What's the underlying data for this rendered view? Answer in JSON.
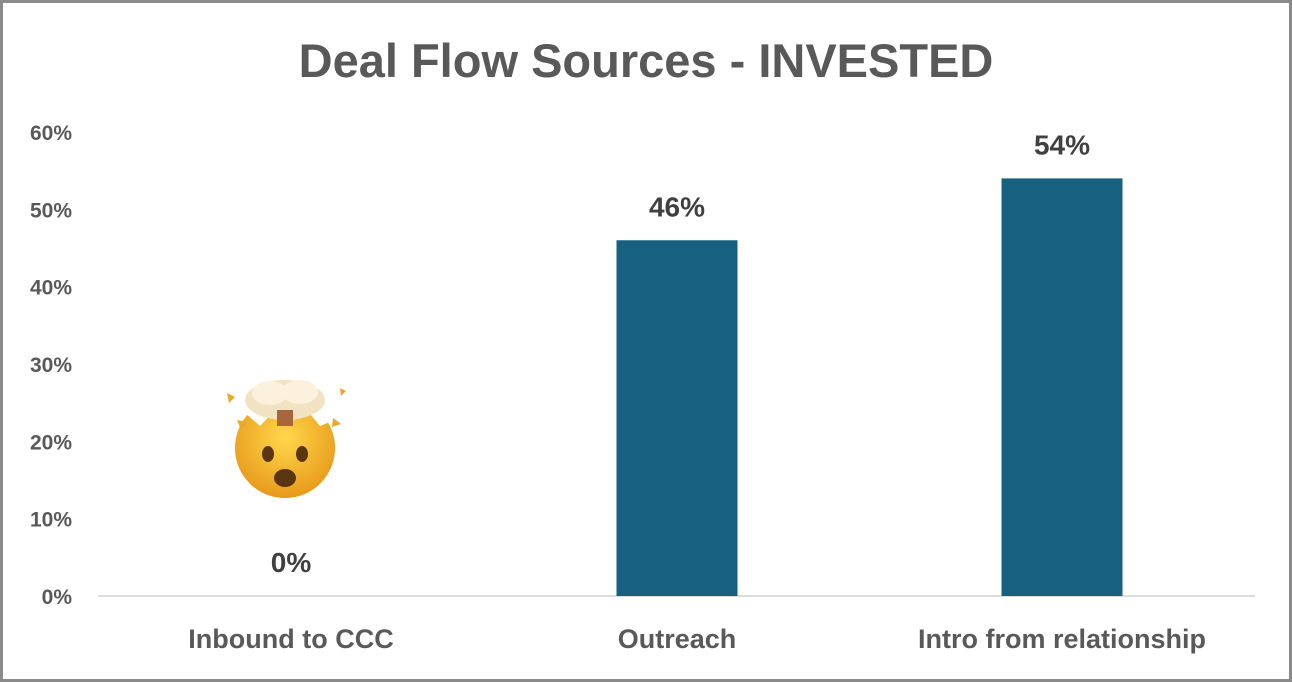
{
  "chart_data": {
    "type": "bar",
    "title": "Deal Flow Sources - INVESTED",
    "categories": [
      "Inbound to CCC",
      "Outreach",
      "Intro from relationship"
    ],
    "values": [
      0,
      46,
      54
    ],
    "data_labels": [
      "0%",
      "46%",
      "54%"
    ],
    "yticks": [
      "0%",
      "10%",
      "20%",
      "30%",
      "40%",
      "50%",
      "60%"
    ],
    "ylim": [
      0,
      60
    ],
    "xlabel": "",
    "ylabel": "",
    "grid": false,
    "legend": "none",
    "bar_color": "#17607F",
    "annotation_icon": "exploding-head-emoji"
  }
}
